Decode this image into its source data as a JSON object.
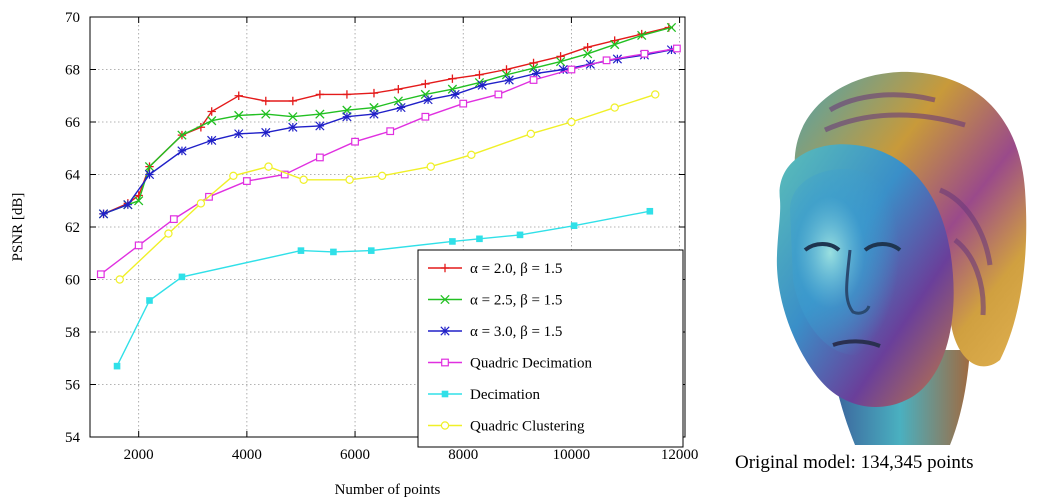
{
  "chart_data": {
    "type": "line",
    "title": "",
    "xlabel": "Number of points",
    "ylabel": "PSNR [dB]",
    "xlim": [
      1100,
      12100
    ],
    "ylim": [
      54,
      70
    ],
    "xticks": [
      2000,
      4000,
      6000,
      8000,
      10000,
      12000
    ],
    "yticks": [
      54,
      56,
      58,
      60,
      62,
      64,
      66,
      68,
      70
    ],
    "grid": true,
    "legend_position": "bottom-right",
    "series": [
      {
        "name": "α = 2.0, β = 1.5",
        "color": "#e41a1a",
        "marker": "plus",
        "x": [
          1350,
          1800,
          2000,
          2200,
          2800,
          3150,
          3350,
          3850,
          4350,
          4850,
          5350,
          5850,
          6350,
          6800,
          7300,
          7800,
          8300,
          8800,
          9300,
          9800,
          10300,
          10800,
          11300,
          11800
        ],
        "y": [
          62.5,
          62.9,
          63.2,
          64.3,
          65.5,
          65.8,
          66.4,
          67.0,
          66.8,
          66.8,
          67.05,
          67.05,
          67.1,
          67.25,
          67.45,
          67.65,
          67.8,
          68.0,
          68.25,
          68.5,
          68.85,
          69.1,
          69.35,
          69.6
        ]
      },
      {
        "name": "α = 2.5, β = 1.5",
        "color": "#22c022",
        "marker": "x",
        "x": [
          1350,
          1800,
          2000,
          2200,
          2800,
          3350,
          3850,
          4350,
          4850,
          5350,
          5850,
          6350,
          6800,
          7300,
          7800,
          8300,
          8800,
          9300,
          9800,
          10300,
          10800,
          11300,
          11850
        ],
        "y": [
          62.5,
          62.85,
          63.0,
          64.3,
          65.5,
          66.05,
          66.25,
          66.3,
          66.2,
          66.3,
          66.45,
          66.55,
          66.8,
          67.05,
          67.25,
          67.5,
          67.8,
          68.05,
          68.3,
          68.6,
          68.95,
          69.3,
          69.6
        ]
      },
      {
        "name": "α = 3.0, β = 1.5",
        "color": "#2020c8",
        "marker": "star",
        "x": [
          1350,
          1800,
          2200,
          2800,
          3350,
          3850,
          4350,
          4850,
          5350,
          5850,
          6350,
          6850,
          7350,
          7850,
          8350,
          8850,
          9350,
          9850,
          10350,
          10850,
          11350,
          11850
        ],
        "y": [
          62.5,
          62.85,
          64.0,
          64.9,
          65.3,
          65.55,
          65.6,
          65.8,
          65.85,
          66.2,
          66.3,
          66.55,
          66.85,
          67.05,
          67.4,
          67.6,
          67.85,
          68.0,
          68.2,
          68.4,
          68.55,
          68.75
        ]
      },
      {
        "name": "Quadric Decimation",
        "color": "#e030e0",
        "marker": "square",
        "x": [
          1300,
          2000,
          2650,
          3300,
          4000,
          4700,
          5350,
          6000,
          6650,
          7300,
          8000,
          8650,
          9300,
          10000,
          10650,
          11350,
          11950
        ],
        "y": [
          60.2,
          61.3,
          62.3,
          63.15,
          63.75,
          64.0,
          64.65,
          65.25,
          65.65,
          66.2,
          66.7,
          67.05,
          67.6,
          68.0,
          68.35,
          68.6,
          68.8
        ]
      },
      {
        "name": "Decimation",
        "color": "#30e0e8",
        "marker": "filled-square",
        "x": [
          1600,
          2200,
          2800,
          5000,
          5600,
          6300,
          7800,
          8300,
          9050,
          10050,
          11450
        ],
        "y": [
          56.7,
          59.2,
          60.1,
          61.1,
          61.05,
          61.1,
          61.45,
          61.55,
          61.7,
          62.05,
          62.6
        ]
      },
      {
        "name": "Quadric Clustering",
        "color": "#f0f028",
        "marker": "circle",
        "x": [
          1650,
          2550,
          3150,
          3750,
          4400,
          5050,
          5900,
          6500,
          7400,
          8150,
          9250,
          10000,
          10800,
          11550
        ],
        "y": [
          60.0,
          61.75,
          62.9,
          63.95,
          64.3,
          63.8,
          63.8,
          63.95,
          64.3,
          64.75,
          65.55,
          66.0,
          66.55,
          67.05
        ]
      }
    ]
  },
  "figure": {
    "caption": "Original model: 134,345 points",
    "colors": {
      "gold": "#d4a93a",
      "teal": "#3ab6b8",
      "purple": "#7a3c9a",
      "blue": "#3f76c8",
      "dark": "#2a3f5a"
    }
  }
}
